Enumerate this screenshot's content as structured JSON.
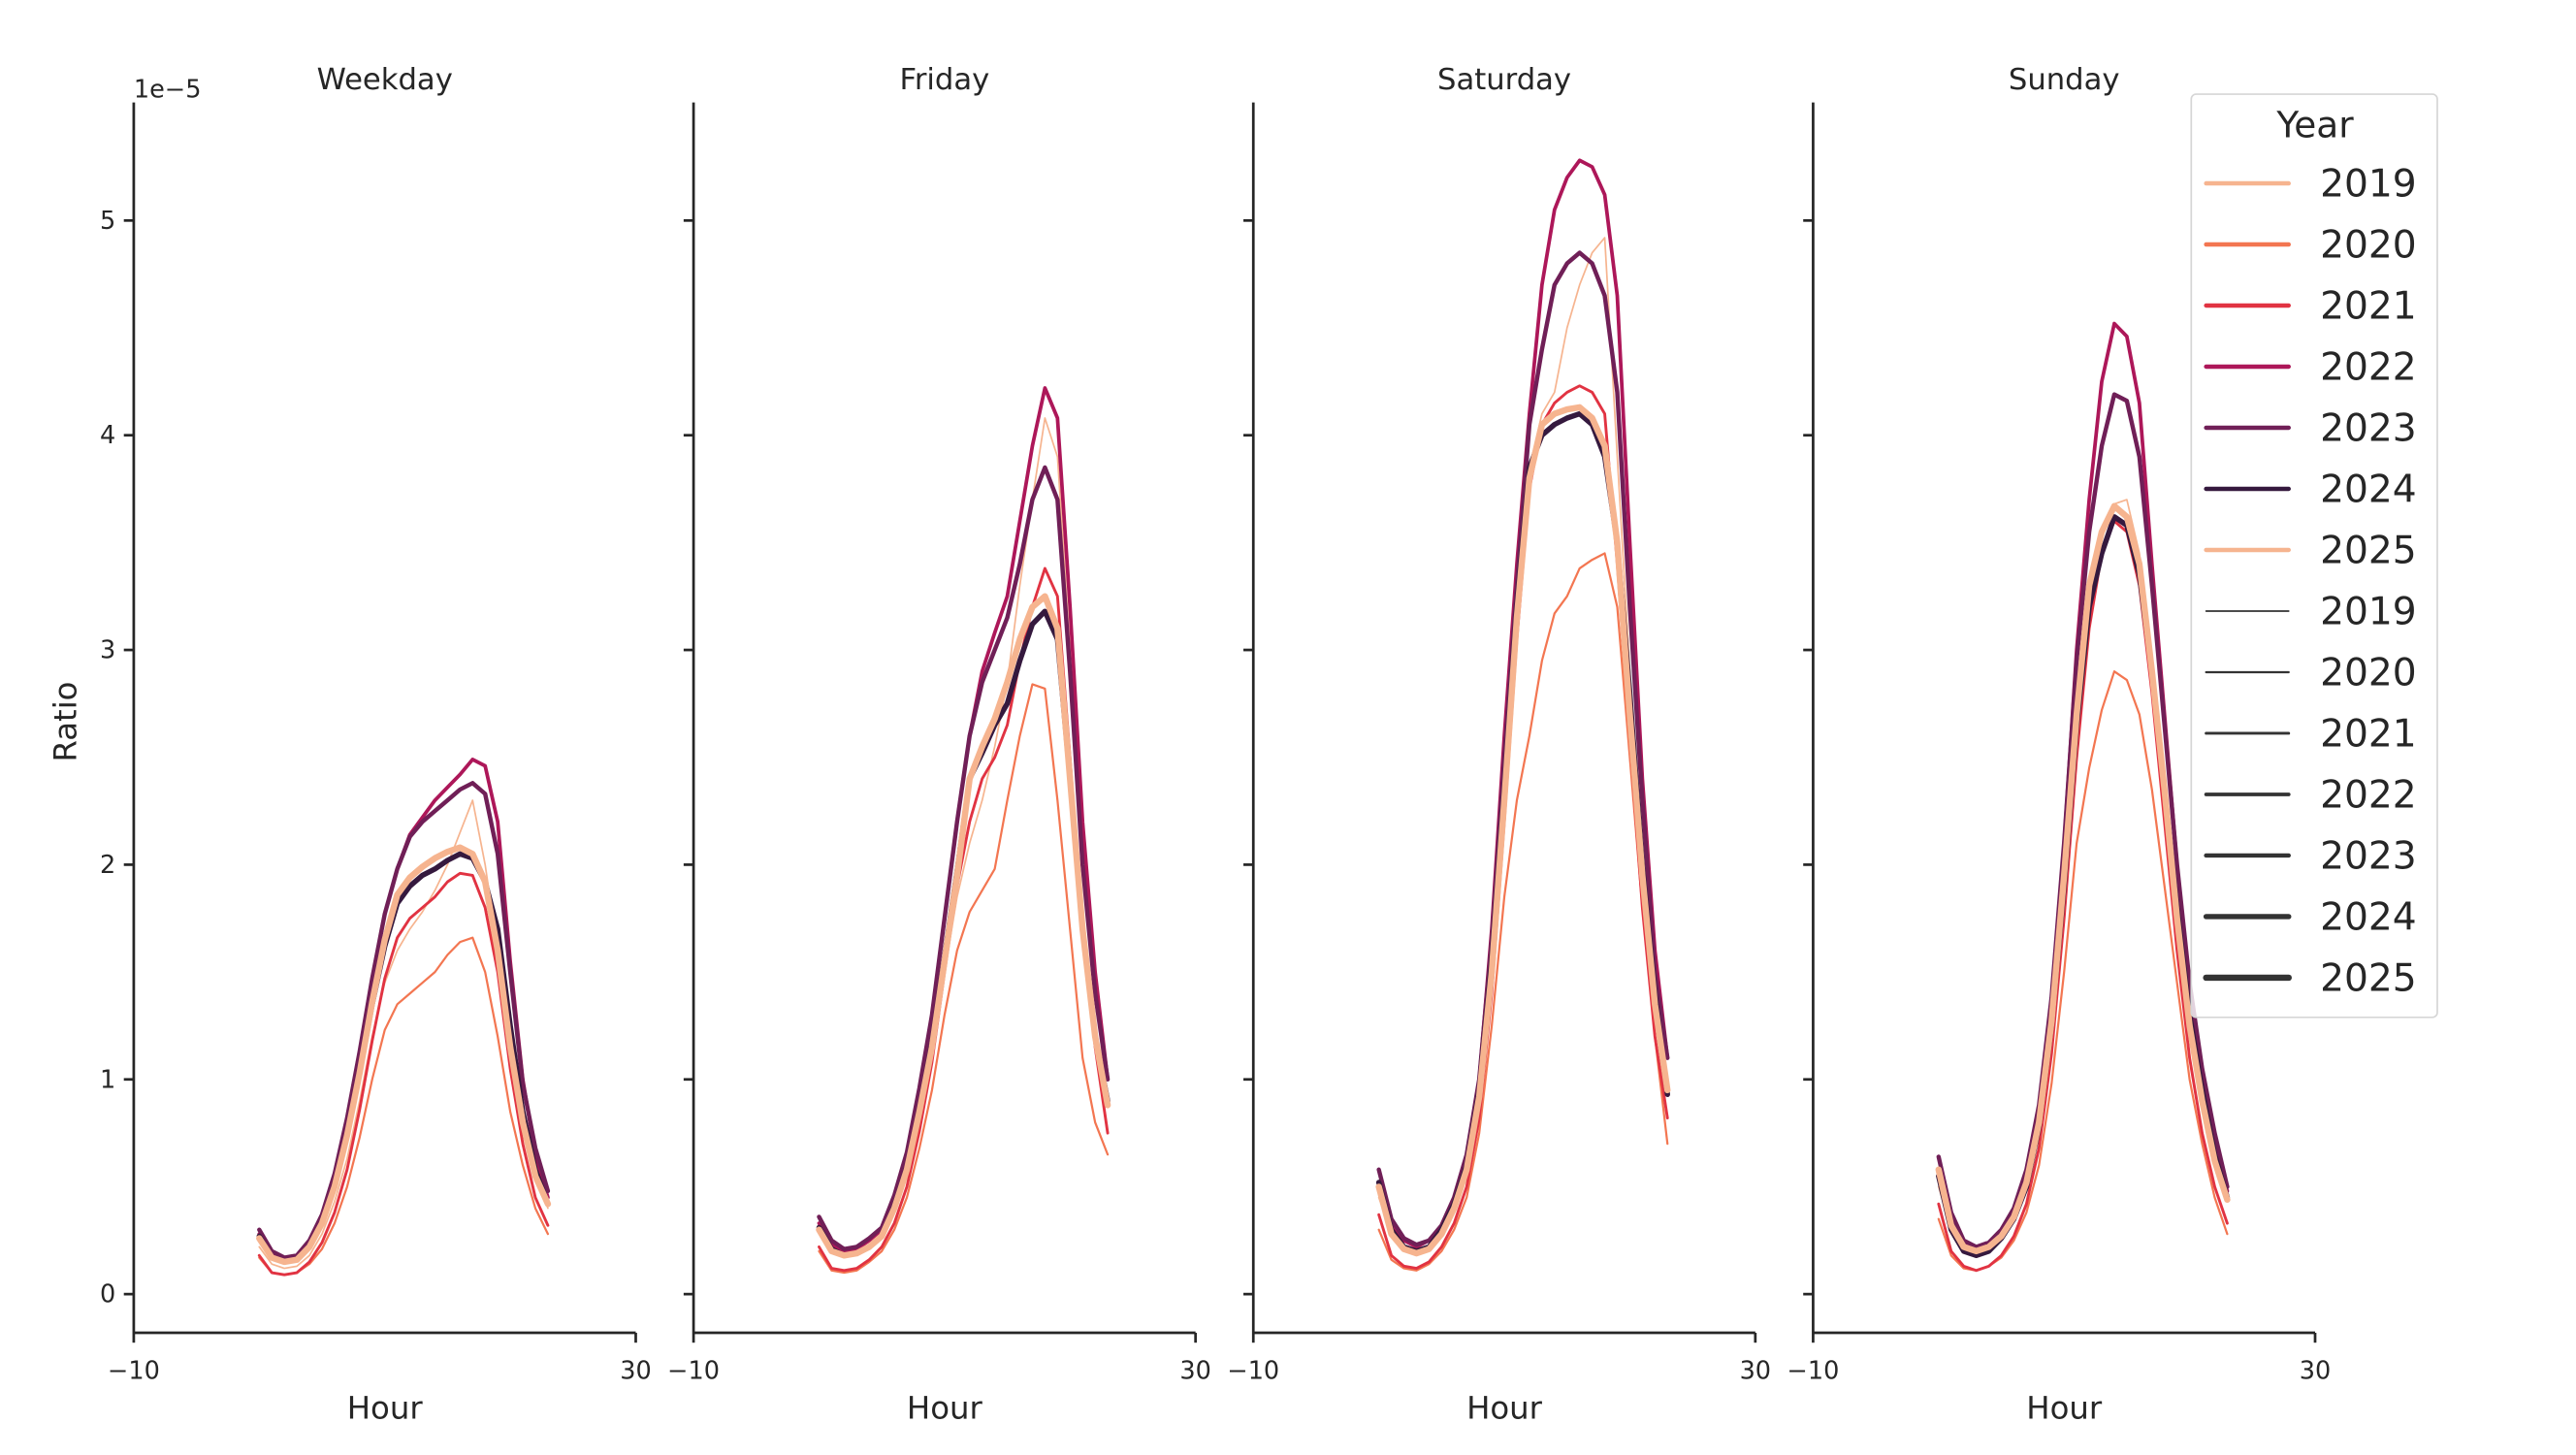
{
  "chart_data": {
    "type": "line",
    "xlabel": "Hour",
    "ylabel": "Ratio",
    "y_offset_text": "1e−5",
    "xlim": [
      -10,
      30
    ],
    "ylim": [
      -0.18,
      5.55
    ],
    "x_ticks": [
      -10,
      30
    ],
    "x_tick_labels": [
      "−10",
      "30"
    ],
    "y_ticks": [
      0,
      1,
      2,
      3,
      4,
      5
    ],
    "y_tick_labels": [
      "0",
      "1",
      "2",
      "3",
      "4",
      "5"
    ],
    "y_unit_multiplier": 1e-05,
    "grid": false,
    "x": [
      0,
      1,
      2,
      3,
      4,
      5,
      6,
      7,
      8,
      9,
      10,
      11,
      12,
      13,
      14,
      15,
      16,
      17,
      18,
      19,
      20,
      21,
      22,
      23
    ],
    "legend": {
      "title": "Year",
      "placement": "top-right",
      "hue_entries": [
        "2019",
        "2020",
        "2021",
        "2022",
        "2023",
        "2024",
        "2025"
      ],
      "size_entries": [
        "2019",
        "2020",
        "2021",
        "2022",
        "2023",
        "2024",
        "2025"
      ]
    },
    "year_colors": {
      "2019": "#f6b48f",
      "2020": "#f37651",
      "2021": "#e13342",
      "2022": "#ad1759",
      "2023": "#701f57",
      "2024": "#35193e",
      "2025": "#f6b48f"
    },
    "size_legend_color": "#333333",
    "panels": [
      {
        "title": "Weekday",
        "series": [
          {
            "name": "2019",
            "values": [
              0.22,
              0.14,
              0.12,
              0.13,
              0.18,
              0.28,
              0.43,
              0.63,
              0.9,
              1.2,
              1.45,
              1.6,
              1.7,
              1.78,
              1.88,
              2.0,
              2.15,
              2.3,
              2.0,
              1.6,
              1.15,
              0.8,
              0.55,
              0.4
            ]
          },
          {
            "name": "2020",
            "values": [
              0.17,
              0.1,
              0.09,
              0.1,
              0.14,
              0.21,
              0.33,
              0.5,
              0.73,
              1.0,
              1.23,
              1.35,
              1.4,
              1.45,
              1.5,
              1.58,
              1.64,
              1.66,
              1.5,
              1.2,
              0.85,
              0.6,
              0.4,
              0.28
            ]
          },
          {
            "name": "2021",
            "values": [
              0.18,
              0.1,
              0.09,
              0.1,
              0.15,
              0.24,
              0.38,
              0.58,
              0.86,
              1.18,
              1.47,
              1.66,
              1.75,
              1.8,
              1.85,
              1.92,
              1.96,
              1.95,
              1.8,
              1.5,
              1.05,
              0.7,
              0.45,
              0.32
            ]
          },
          {
            "name": "2022",
            "values": [
              0.28,
              0.19,
              0.16,
              0.18,
              0.25,
              0.37,
              0.56,
              0.82,
              1.13,
              1.47,
              1.77,
              1.98,
              2.14,
              2.22,
              2.3,
              2.36,
              2.42,
              2.49,
              2.46,
              2.2,
              1.55,
              1.0,
              0.65,
              0.45
            ]
          },
          {
            "name": "2023",
            "values": [
              0.3,
              0.2,
              0.17,
              0.18,
              0.25,
              0.37,
              0.56,
              0.82,
              1.13,
              1.47,
              1.77,
              1.98,
              2.13,
              2.2,
              2.25,
              2.3,
              2.35,
              2.38,
              2.33,
              2.05,
              1.5,
              0.98,
              0.68,
              0.48
            ]
          },
          {
            "name": "2024",
            "values": [
              0.27,
              0.17,
              0.15,
              0.16,
              0.22,
              0.33,
              0.5,
              0.74,
              1.03,
              1.35,
              1.62,
              1.82,
              1.9,
              1.95,
              1.98,
              2.02,
              2.05,
              2.03,
              1.92,
              1.7,
              1.25,
              0.85,
              0.58,
              0.42
            ]
          },
          {
            "name": "2025",
            "values": [
              0.26,
              0.17,
              0.15,
              0.16,
              0.22,
              0.33,
              0.5,
              0.74,
              1.03,
              1.36,
              1.65,
              1.86,
              1.94,
              1.99,
              2.03,
              2.06,
              2.08,
              2.05,
              1.92,
              1.6,
              1.15,
              0.8,
              0.55,
              0.42
            ]
          }
        ]
      },
      {
        "title": "Friday",
        "series": [
          {
            "name": "2019",
            "values": [
              0.3,
              0.2,
              0.18,
              0.19,
              0.22,
              0.27,
              0.4,
              0.58,
              0.85,
              1.15,
              1.5,
              1.85,
              2.1,
              2.3,
              2.55,
              2.85,
              3.3,
              3.7,
              4.08,
              3.9,
              3.0,
              2.0,
              1.4,
              0.9
            ]
          },
          {
            "name": "2020",
            "values": [
              0.2,
              0.11,
              0.1,
              0.11,
              0.15,
              0.2,
              0.3,
              0.45,
              0.68,
              0.95,
              1.3,
              1.6,
              1.78,
              1.88,
              1.98,
              2.3,
              2.6,
              2.84,
              2.82,
              2.3,
              1.7,
              1.1,
              0.8,
              0.65
            ]
          },
          {
            "name": "2021",
            "values": [
              0.22,
              0.12,
              0.11,
              0.12,
              0.16,
              0.22,
              0.33,
              0.5,
              0.76,
              1.08,
              1.5,
              1.9,
              2.2,
              2.4,
              2.5,
              2.65,
              2.95,
              3.2,
              3.38,
              3.25,
              2.5,
              1.7,
              1.15,
              0.75
            ]
          },
          {
            "name": "2022",
            "values": [
              0.33,
              0.23,
              0.2,
              0.21,
              0.25,
              0.3,
              0.45,
              0.65,
              0.95,
              1.3,
              1.75,
              2.2,
              2.6,
              2.9,
              3.08,
              3.25,
              3.6,
              3.95,
              4.22,
              4.08,
              3.2,
              2.2,
              1.5,
              1.0
            ]
          },
          {
            "name": "2023",
            "values": [
              0.36,
              0.25,
              0.21,
              0.22,
              0.26,
              0.31,
              0.46,
              0.66,
              0.96,
              1.3,
              1.75,
              2.2,
              2.6,
              2.85,
              3.0,
              3.15,
              3.4,
              3.7,
              3.85,
              3.7,
              2.9,
              2.0,
              1.4,
              1.0
            ]
          },
          {
            "name": "2024",
            "values": [
              0.31,
              0.21,
              0.18,
              0.19,
              0.22,
              0.27,
              0.41,
              0.59,
              0.86,
              1.17,
              1.57,
              1.97,
              2.4,
              2.52,
              2.65,
              2.75,
              2.95,
              3.12,
              3.18,
              3.05,
              2.4,
              1.7,
              1.2,
              0.9
            ]
          },
          {
            "name": "2025",
            "values": [
              0.3,
              0.2,
              0.18,
              0.19,
              0.22,
              0.27,
              0.4,
              0.58,
              0.85,
              1.15,
              1.55,
              1.95,
              2.4,
              2.55,
              2.68,
              2.85,
              3.05,
              3.2,
              3.25,
              3.1,
              2.4,
              1.7,
              1.2,
              0.88
            ]
          }
        ]
      },
      {
        "title": "Saturday",
        "series": [
          {
            "name": "2019",
            "values": [
              0.45,
              0.28,
              0.21,
              0.19,
              0.22,
              0.3,
              0.42,
              0.6,
              0.95,
              1.55,
              2.35,
              3.2,
              3.85,
              4.1,
              4.2,
              4.5,
              4.7,
              4.85,
              4.92,
              3.9,
              2.9,
              2.0,
              1.4,
              1.0
            ]
          },
          {
            "name": "2020",
            "values": [
              0.3,
              0.16,
              0.12,
              0.11,
              0.14,
              0.2,
              0.3,
              0.45,
              0.75,
              1.25,
              1.85,
              2.3,
              2.6,
              2.95,
              3.17,
              3.25,
              3.38,
              3.42,
              3.45,
              3.2,
              2.5,
              1.8,
              1.2,
              0.7
            ]
          },
          {
            "name": "2021",
            "values": [
              0.37,
              0.18,
              0.13,
              0.12,
              0.15,
              0.22,
              0.33,
              0.5,
              0.82,
              1.4,
              2.2,
              3.05,
              3.75,
              4.05,
              4.15,
              4.2,
              4.23,
              4.2,
              4.1,
              3.4,
              2.6,
              1.8,
              1.2,
              0.82
            ]
          },
          {
            "name": "2022",
            "values": [
              0.5,
              0.33,
              0.25,
              0.22,
              0.25,
              0.32,
              0.45,
              0.65,
              1.0,
              1.7,
              2.6,
              3.4,
              4.1,
              4.7,
              5.05,
              5.2,
              5.28,
              5.25,
              5.12,
              4.65,
              3.5,
              2.4,
              1.6,
              1.1
            ]
          },
          {
            "name": "2023",
            "values": [
              0.58,
              0.35,
              0.26,
              0.23,
              0.25,
              0.32,
              0.45,
              0.65,
              1.0,
              1.65,
              2.5,
              3.3,
              4.05,
              4.4,
              4.7,
              4.8,
              4.85,
              4.8,
              4.65,
              4.2,
              3.2,
              2.3,
              1.5,
              1.1
            ]
          },
          {
            "name": "2024",
            "values": [
              0.52,
              0.3,
              0.22,
              0.2,
              0.22,
              0.3,
              0.42,
              0.6,
              0.95,
              1.55,
              2.35,
              3.2,
              3.85,
              4.0,
              4.05,
              4.08,
              4.1,
              4.05,
              3.9,
              3.5,
              2.8,
              2.0,
              1.4,
              0.93
            ]
          },
          {
            "name": "2025",
            "values": [
              0.5,
              0.28,
              0.21,
              0.19,
              0.21,
              0.28,
              0.4,
              0.58,
              0.92,
              1.5,
              2.3,
              3.15,
              3.8,
              4.05,
              4.1,
              4.12,
              4.13,
              4.08,
              3.95,
              3.5,
              2.7,
              1.95,
              1.35,
              0.95
            ]
          }
        ]
      },
      {
        "title": "Sunday",
        "series": [
          {
            "name": "2019",
            "values": [
              0.5,
              0.3,
              0.21,
              0.19,
              0.21,
              0.26,
              0.35,
              0.5,
              0.78,
              1.25,
              1.9,
              2.65,
              3.25,
              3.55,
              3.68,
              3.7,
              3.45,
              2.95,
              2.35,
              1.8,
              1.3,
              0.9,
              0.62,
              0.44
            ]
          },
          {
            "name": "2020",
            "values": [
              0.35,
              0.18,
              0.12,
              0.11,
              0.13,
              0.17,
              0.25,
              0.38,
              0.6,
              0.98,
              1.5,
              2.1,
              2.45,
              2.72,
              2.9,
              2.86,
              2.7,
              2.35,
              1.9,
              1.45,
              1.0,
              0.7,
              0.45,
              0.28
            ]
          },
          {
            "name": "2021",
            "values": [
              0.42,
              0.2,
              0.13,
              0.11,
              0.13,
              0.18,
              0.27,
              0.42,
              0.68,
              1.12,
              1.75,
              2.5,
              3.1,
              3.45,
              3.6,
              3.55,
              3.3,
              2.8,
              2.2,
              1.6,
              1.1,
              0.75,
              0.5,
              0.33
            ]
          },
          {
            "name": "2022",
            "values": [
              0.55,
              0.33,
              0.23,
              0.2,
              0.22,
              0.28,
              0.38,
              0.55,
              0.85,
              1.35,
              2.1,
              3.0,
              3.7,
              4.25,
              4.52,
              4.46,
              4.15,
              3.4,
              2.7,
              2.0,
              1.45,
              1.0,
              0.7,
              0.48
            ]
          },
          {
            "name": "2023",
            "values": [
              0.64,
              0.38,
              0.25,
              0.22,
              0.24,
              0.3,
              0.4,
              0.58,
              0.88,
              1.38,
              2.1,
              2.95,
              3.55,
              3.95,
              4.19,
              4.16,
              3.9,
              3.3,
              2.65,
              2.0,
              1.45,
              1.05,
              0.75,
              0.5
            ]
          },
          {
            "name": "2024",
            "values": [
              0.55,
              0.3,
              0.2,
              0.18,
              0.2,
              0.26,
              0.35,
              0.5,
              0.78,
              1.25,
              1.9,
              2.65,
              3.2,
              3.45,
              3.62,
              3.58,
              3.35,
              2.9,
              2.35,
              1.8,
              1.3,
              0.95,
              0.65,
              0.45
            ]
          },
          {
            "name": "2025",
            "values": [
              0.58,
              0.32,
              0.22,
              0.2,
              0.22,
              0.27,
              0.36,
              0.52,
              0.8,
              1.27,
              1.95,
              2.7,
              3.3,
              3.55,
              3.67,
              3.62,
              3.4,
              2.9,
              2.35,
              1.75,
              1.25,
              0.9,
              0.62,
              0.44
            ]
          }
        ]
      }
    ]
  }
}
